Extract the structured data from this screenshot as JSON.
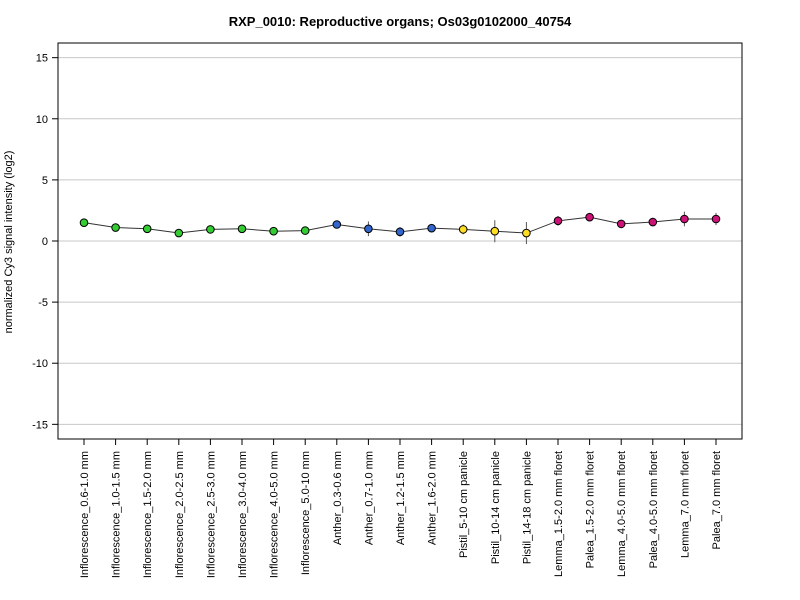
{
  "chart_data": {
    "type": "line",
    "title": "RXP_0010: Reproductive organs; Os03g0102000_40754",
    "ylabel": "normalized Cy3 signal intensity (log2)",
    "xlabel": "",
    "ylim": [
      -16.2,
      16.2
    ],
    "yticks": [
      -15,
      -10,
      -5,
      0,
      5,
      10,
      15
    ],
    "grid": true,
    "categories": [
      "Inflorescence_0.6-1.0 mm",
      "Inflorescence_1.0-1.5 mm",
      "Inflorescence_1.5-2.0 mm",
      "Inflorescence_2.0-2.5 mm",
      "Inflorescence_2.5-3.0 mm",
      "Inflorescence_3.0-4.0 mm",
      "Inflorescence_4.0-5.0 mm",
      "Inflorescence_5.0-10 mm",
      "Anther_0.3-0.6 mm",
      "Anther_0.7-1.0 mm",
      "Anther_1.2-1.5 mm",
      "Anther_1.6-2.0 mm",
      "Pistil_5-10 cm panicle",
      "Pistil_10-14 cm panicle",
      "Pistil_14-18 cm panicle",
      "Lemma_1.5-2.0 mm floret",
      "Palea_1.5-2.0 mm floret",
      "Lemma_4.0-5.0 mm floret",
      "Palea_4.0-5.0 mm floret",
      "Lemma_7.0 mm floret",
      "Palea_7.0 mm floret"
    ],
    "values": [
      1.5,
      1.1,
      1.0,
      0.65,
      0.95,
      1.0,
      0.8,
      0.85,
      1.35,
      1.0,
      0.75,
      1.05,
      0.95,
      0.8,
      0.65,
      1.65,
      1.95,
      1.4,
      1.55,
      1.8,
      1.8
    ],
    "errors": [
      0.1,
      0.05,
      0.05,
      0.05,
      0.05,
      0.05,
      0.05,
      0.05,
      0.1,
      0.6,
      0.4,
      0.1,
      0.4,
      0.9,
      0.9,
      0.4,
      0.3,
      0.2,
      0.35,
      0.6,
      0.5
    ],
    "colors": [
      "#33cc33",
      "#33cc33",
      "#33cc33",
      "#33cc33",
      "#33cc33",
      "#33cc33",
      "#33cc33",
      "#33cc33",
      "#3366cc",
      "#3366cc",
      "#3366cc",
      "#3366cc",
      "#ffdd22",
      "#ffdd22",
      "#ffdd22",
      "#cc1177",
      "#cc1177",
      "#cc1177",
      "#cc1177",
      "#cc1177",
      "#cc1177"
    ]
  }
}
